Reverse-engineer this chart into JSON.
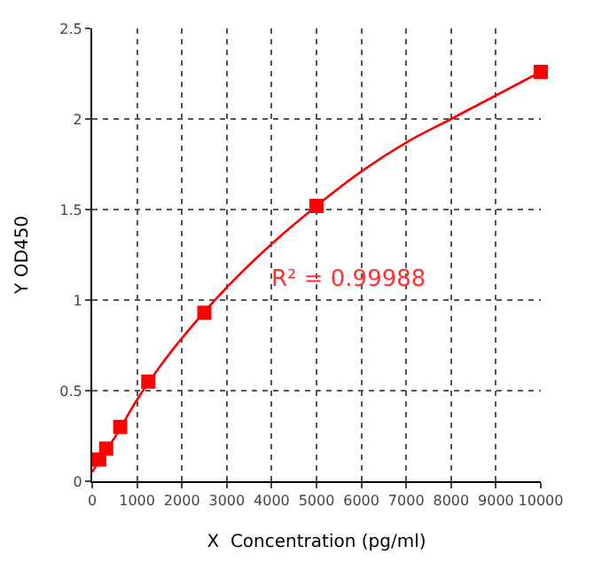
{
  "chart_data": {
    "type": "scatter",
    "xlabel": "X  Concentration (pg/ml)",
    "ylabel": "Y OD450",
    "annotations": [
      "R² = 0.99988"
    ],
    "series": [
      {
        "color": "#ff0000",
        "x": [
          156,
          312,
          625,
          1250,
          2500,
          5000,
          10000
        ],
        "values": [
          0.12,
          0.18,
          0.3,
          0.55,
          0.93,
          1.52,
          2.26
        ],
        "marker": "square"
      },
      {
        "type": "line",
        "color": "#ff0000",
        "x": [
          0,
          250,
          500,
          1000,
          1500,
          2000,
          3000,
          4000,
          5000,
          6000,
          7000,
          8000,
          9000,
          10000
        ],
        "values": [
          0.05,
          0.15,
          0.24,
          0.45,
          0.63,
          0.79,
          1.07,
          1.31,
          1.52,
          1.71,
          1.87,
          2.0,
          2.13,
          2.26
        ],
        "marker": "none"
      }
    ],
    "xlim": [
      0,
      10000
    ],
    "xticks": [
      0,
      1000,
      2000,
      3000,
      4000,
      5000,
      6000,
      7000,
      8000,
      9000,
      10000
    ],
    "ylim": [
      0,
      2.5
    ],
    "yticks": [
      0,
      0.5,
      1,
      1.5,
      2,
      2.5
    ],
    "grid": true,
    "line_style": "solid"
  }
}
